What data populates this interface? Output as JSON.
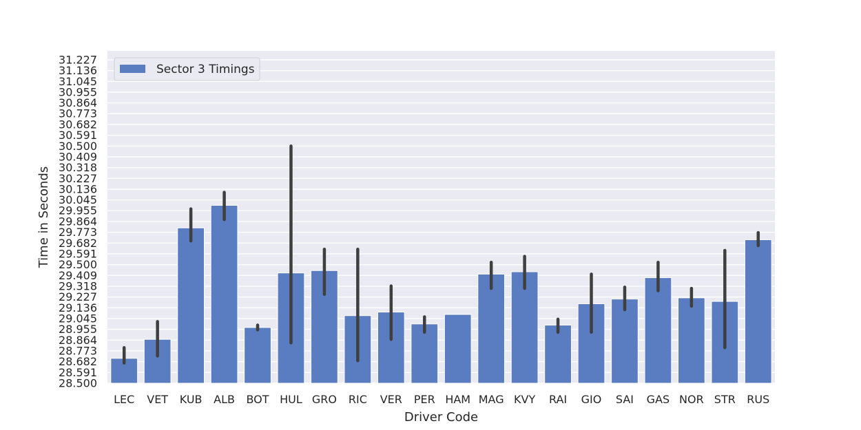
{
  "chart_data": {
    "type": "bar",
    "xlabel": "Driver Code",
    "ylabel": "Time in Seconds",
    "ylim": [
      28.5,
      31.227
    ],
    "yticks": [
      "28.500",
      "28.591",
      "28.682",
      "28.773",
      "28.864",
      "28.955",
      "29.045",
      "29.136",
      "29.227",
      "29.318",
      "29.409",
      "29.500",
      "29.591",
      "29.682",
      "29.773",
      "29.864",
      "29.955",
      "30.045",
      "30.136",
      "30.227",
      "30.318",
      "30.409",
      "30.500",
      "30.591",
      "30.682",
      "30.773",
      "30.864",
      "30.955",
      "31.045",
      "31.136",
      "31.227"
    ],
    "grid": true,
    "legend_position": "top-left",
    "categories": [
      "LEC",
      "VET",
      "KUB",
      "ALB",
      "BOT",
      "HUL",
      "GRO",
      "RIC",
      "VER",
      "PER",
      "HAM",
      "MAG",
      "KVY",
      "RAI",
      "GIO",
      "SAI",
      "GAS",
      "NOR",
      "STR",
      "RUS"
    ],
    "series": [
      {
        "name": "Sector 3 Timings",
        "color": "#5a7dc2",
        "values": [
          28.71,
          28.87,
          29.81,
          30.0,
          28.97,
          29.43,
          29.45,
          29.07,
          29.1,
          29.0,
          29.08,
          29.42,
          29.44,
          28.99,
          29.17,
          29.21,
          29.39,
          29.22,
          29.19,
          29.71
        ],
        "error_low": [
          28.67,
          28.73,
          29.7,
          29.88,
          28.95,
          28.84,
          29.25,
          28.69,
          28.87,
          28.93,
          29.08,
          29.3,
          29.3,
          28.93,
          28.93,
          29.12,
          29.28,
          29.15,
          28.8,
          29.66
        ],
        "error_high": [
          28.8,
          29.02,
          29.97,
          30.11,
          28.99,
          30.5,
          29.63,
          29.63,
          29.32,
          29.06,
          29.08,
          29.52,
          29.57,
          29.04,
          29.42,
          29.31,
          29.52,
          29.3,
          29.62,
          29.77
        ]
      }
    ]
  },
  "colors": {
    "plot_background": "#eaeaf2",
    "grid": "#ffffff",
    "bar": "#5a7dc2",
    "error_bar": "#3f3f3f"
  }
}
